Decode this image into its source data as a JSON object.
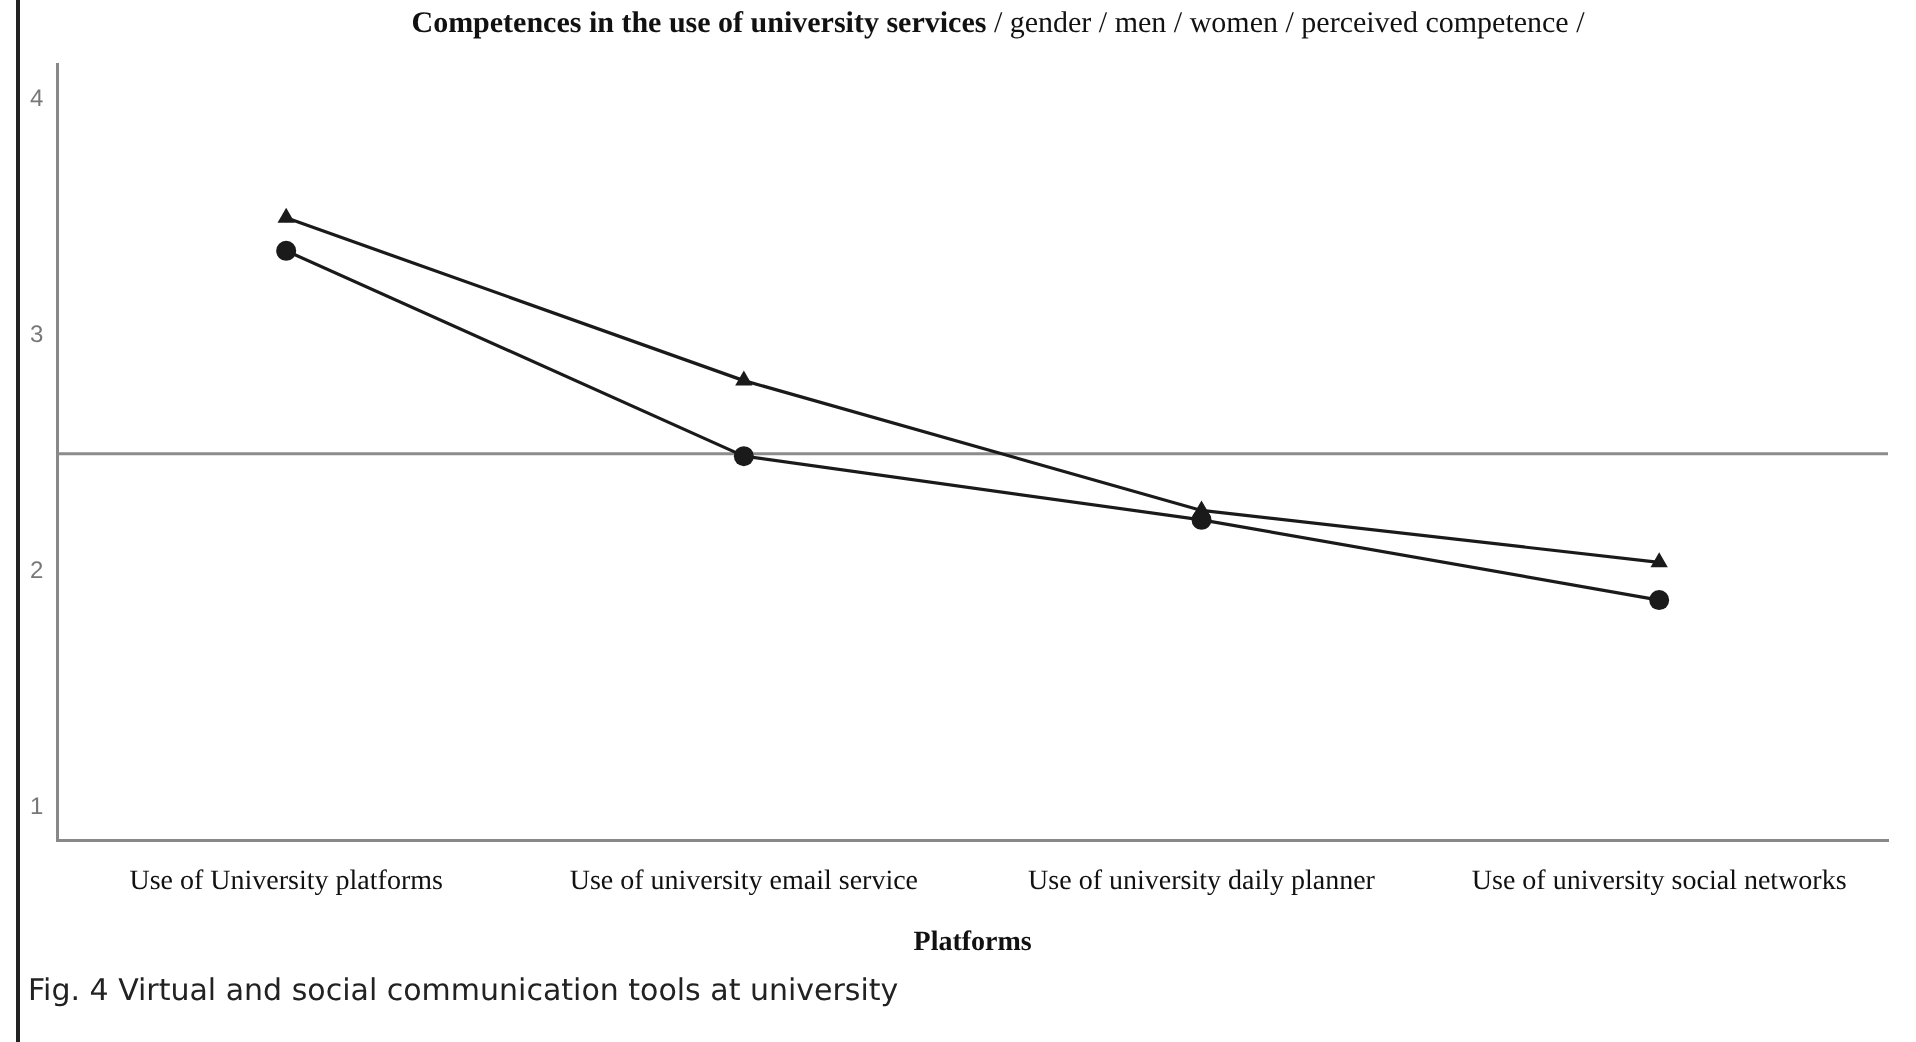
{
  "chart_data": {
    "type": "line",
    "title": "Competences in the use of university services",
    "subtitle": "/ gender / men / women / perceived competence /",
    "xlabel": "Platforms",
    "categories": [
      "Use of University platforms",
      "Use of university email service",
      "Use of university daily planner",
      "Use of university social networks"
    ],
    "series": [
      {
        "color": "#1a1a1a",
        "marker": "triangle",
        "values": [
          3.5,
          2.81,
          2.26,
          2.04
        ]
      },
      {
        "color": "#1a1a1a",
        "marker": "circle",
        "values": [
          3.36,
          2.49,
          2.22,
          1.88
        ]
      }
    ],
    "ylim": [
      0.86,
      4.15
    ],
    "yticks": [
      1,
      2,
      3,
      4
    ],
    "ref_lines": [
      {
        "axis": "y",
        "value": 2.5,
        "color": "#8c8c8c"
      }
    ],
    "grid": false,
    "legend": false,
    "line_style": "solid",
    "annotations": [
      "Fig. 4 Virtual and social communication tools at university"
    ]
  }
}
